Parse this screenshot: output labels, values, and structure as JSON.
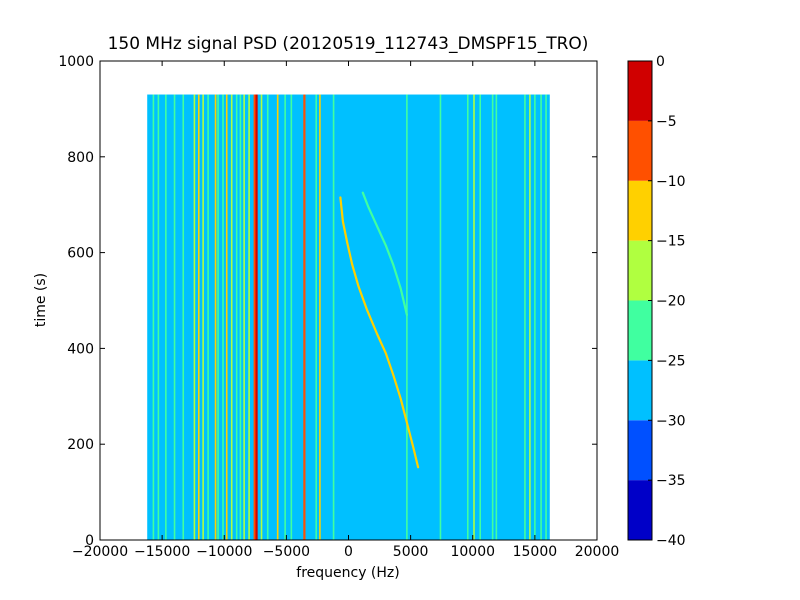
{
  "chart_data": {
    "type": "heatmap",
    "title": "150 MHz signal PSD (20120519_112743_DMSPF15_TRO)",
    "xlabel": "frequency (Hz)",
    "ylabel": "time (s)",
    "xlim": [
      -20000,
      20000
    ],
    "ylim": [
      0,
      1000
    ],
    "x_ticks": [
      -20000,
      -15000,
      -10000,
      -5000,
      0,
      5000,
      10000,
      15000,
      20000
    ],
    "x_tick_labels": [
      "−20000",
      "−15000",
      "−10000",
      "−5000",
      "0",
      "5000",
      "10000",
      "15000",
      "20000"
    ],
    "y_ticks": [
      0,
      200,
      400,
      600,
      800,
      1000
    ],
    "y_tick_labels": [
      "0",
      "200",
      "400",
      "600",
      "800",
      "1000"
    ],
    "data_extent": {
      "x": [
        -16200,
        16200
      ],
      "y": [
        0,
        930
      ]
    },
    "background_level": -27.5,
    "colorbar": {
      "range": [
        -40,
        0
      ],
      "ticks": [
        0,
        -5,
        -10,
        -15,
        -20,
        -25,
        -30,
        -35,
        -40
      ],
      "tick_labels": [
        "0",
        "−5",
        "−10",
        "−15",
        "−20",
        "−25",
        "−30",
        "−35",
        "−40"
      ],
      "levels": [
        {
          "min": -40,
          "max": -35,
          "color": "#0000c8"
        },
        {
          "min": -35,
          "max": -30,
          "color": "#0050ff"
        },
        {
          "min": -30,
          "max": -25,
          "color": "#00c0ff"
        },
        {
          "min": -25,
          "max": -20,
          "color": "#40ffa0"
        },
        {
          "min": -20,
          "max": -15,
          "color": "#b0ff40"
        },
        {
          "min": -15,
          "max": -10,
          "color": "#ffd000"
        },
        {
          "min": -10,
          "max": -5,
          "color": "#ff5000"
        },
        {
          "min": -5,
          "max": 0,
          "color": "#d00000"
        }
      ]
    },
    "vertical_lines": [
      {
        "x": -15700,
        "level": -22.5
      },
      {
        "x": -15300,
        "level": -22.5
      },
      {
        "x": -14700,
        "level": -22.5
      },
      {
        "x": -14000,
        "level": -22.5
      },
      {
        "x": -13300,
        "level": -22.5
      },
      {
        "x": -12400,
        "level": -17.5
      },
      {
        "x": -12050,
        "level": -12.5
      },
      {
        "x": -11700,
        "level": -17.5
      },
      {
        "x": -11300,
        "level": -22.5
      },
      {
        "x": -10700,
        "level": -12.5
      },
      {
        "x": -10500,
        "level": -22.5
      },
      {
        "x": -10100,
        "level": -22.5
      },
      {
        "x": -9800,
        "level": -12.5
      },
      {
        "x": -9400,
        "level": -17.5
      },
      {
        "x": -9000,
        "level": -22.5
      },
      {
        "x": -8700,
        "level": -22.5
      },
      {
        "x": -8400,
        "level": -17.5
      },
      {
        "x": -8000,
        "level": -17.5
      },
      {
        "x": -7550,
        "level": -7.5
      },
      {
        "x": -7400,
        "level": -2.5
      },
      {
        "x": -7000,
        "level": -17.5
      },
      {
        "x": -6500,
        "level": -22.5
      },
      {
        "x": -5700,
        "level": -12.5
      },
      {
        "x": -5100,
        "level": -22.5
      },
      {
        "x": -4600,
        "level": -22.5
      },
      {
        "x": -3550,
        "level": -7.5
      },
      {
        "x": -2600,
        "level": -22.5
      },
      {
        "x": -2300,
        "level": -12.5
      },
      {
        "x": -1200,
        "level": -22.5
      },
      {
        "x": 4700,
        "level": -22.5
      },
      {
        "x": 7400,
        "level": -22.5
      },
      {
        "x": 9600,
        "level": -22.5
      },
      {
        "x": 10100,
        "level": -17.5
      },
      {
        "x": 10600,
        "level": -22.5
      },
      {
        "x": 11600,
        "level": -22.5
      },
      {
        "x": 11900,
        "level": -22.5
      },
      {
        "x": 14200,
        "level": -22.5
      },
      {
        "x": 14600,
        "level": -17.5
      },
      {
        "x": 15000,
        "level": -22.5
      },
      {
        "x": 15500,
        "level": -22.5
      },
      {
        "x": 15900,
        "level": -22.5
      }
    ],
    "doppler_traces": [
      {
        "level": -12.5,
        "points": [
          [
            -650,
            715
          ],
          [
            -450,
            665
          ],
          [
            -100,
            620
          ],
          [
            300,
            575
          ],
          [
            800,
            530
          ],
          [
            1500,
            480
          ],
          [
            2300,
            430
          ],
          [
            3000,
            390
          ],
          [
            3600,
            345
          ],
          [
            4200,
            295
          ],
          [
            4700,
            245
          ],
          [
            5200,
            195
          ],
          [
            5600,
            152
          ]
        ]
      },
      {
        "level": -22.5,
        "points": [
          [
            1150,
            725
          ],
          [
            1600,
            695
          ],
          [
            2300,
            655
          ],
          [
            3000,
            615
          ],
          [
            3600,
            575
          ],
          [
            4200,
            525
          ],
          [
            4700,
            470
          ]
        ]
      }
    ]
  }
}
